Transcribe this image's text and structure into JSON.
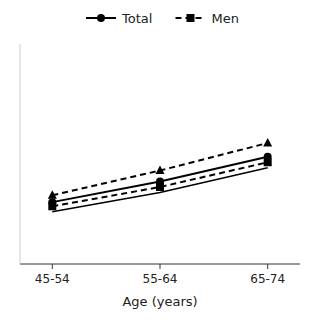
{
  "chart_data": {
    "type": "line",
    "x": [
      1,
      2,
      3
    ],
    "xlabel": "Age (years)",
    "xlim": [
      0.7,
      3.3
    ],
    "xticks": [
      {
        "value": 1,
        "label": "45-54"
      },
      {
        "value": 2,
        "label": "55-64"
      },
      {
        "value": 3,
        "label": "65-74"
      }
    ],
    "ylim": [
      0,
      16
    ],
    "tick_labels": "x",
    "legend": "top",
    "grid": false,
    "series": [
      {
        "color": "#000000",
        "marker": "triangle",
        "line_style": "dashed",
        "values": [
          5.0,
          6.8,
          8.8
        ]
      },
      {
        "name": "Total",
        "color": "#000000",
        "marker": "circle",
        "line_style": "solid",
        "values": [
          4.5,
          6.0,
          7.8
        ]
      },
      {
        "name": "Men",
        "color": "#000000",
        "marker": "square",
        "line_style": "dashed",
        "values": [
          4.2,
          5.6,
          7.4
        ]
      },
      {
        "color": "#000000",
        "marker": "none",
        "line_style": "solid",
        "values": [
          3.8,
          5.2,
          7.0
        ]
      }
    ]
  }
}
